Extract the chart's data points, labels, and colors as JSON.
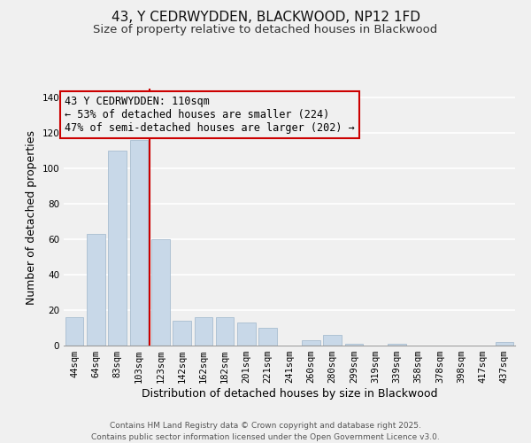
{
  "title": "43, Y CEDRWYDDEN, BLACKWOOD, NP12 1FD",
  "subtitle": "Size of property relative to detached houses in Blackwood",
  "xlabel": "Distribution of detached houses by size in Blackwood",
  "ylabel": "Number of detached properties",
  "categories": [
    "44sqm",
    "64sqm",
    "83sqm",
    "103sqm",
    "123sqm",
    "142sqm",
    "162sqm",
    "182sqm",
    "201sqm",
    "221sqm",
    "241sqm",
    "260sqm",
    "280sqm",
    "299sqm",
    "319sqm",
    "339sqm",
    "358sqm",
    "378sqm",
    "398sqm",
    "417sqm",
    "437sqm"
  ],
  "values": [
    16,
    63,
    110,
    116,
    60,
    14,
    16,
    16,
    13,
    10,
    0,
    3,
    6,
    1,
    0,
    1,
    0,
    0,
    0,
    0,
    2
  ],
  "bar_color": "#c8d8e8",
  "bar_edge_color": "#a8bdd0",
  "vline_x": 3.5,
  "vline_color": "#cc0000",
  "annotation_line1": "43 Y CEDRWYDDEN: 110sqm",
  "annotation_line2": "← 53% of detached houses are smaller (224)",
  "annotation_line3": "47% of semi-detached houses are larger (202) →",
  "ylim": [
    0,
    145
  ],
  "yticks": [
    0,
    20,
    40,
    60,
    80,
    100,
    120,
    140
  ],
  "background_color": "#f0f0f0",
  "grid_color": "#ffffff",
  "footer_text": "Contains HM Land Registry data © Crown copyright and database right 2025.\nContains public sector information licensed under the Open Government Licence v3.0.",
  "title_fontsize": 11,
  "subtitle_fontsize": 9.5,
  "axis_label_fontsize": 9,
  "tick_fontsize": 7.5,
  "annotation_fontsize": 8.5,
  "footer_fontsize": 6.5
}
